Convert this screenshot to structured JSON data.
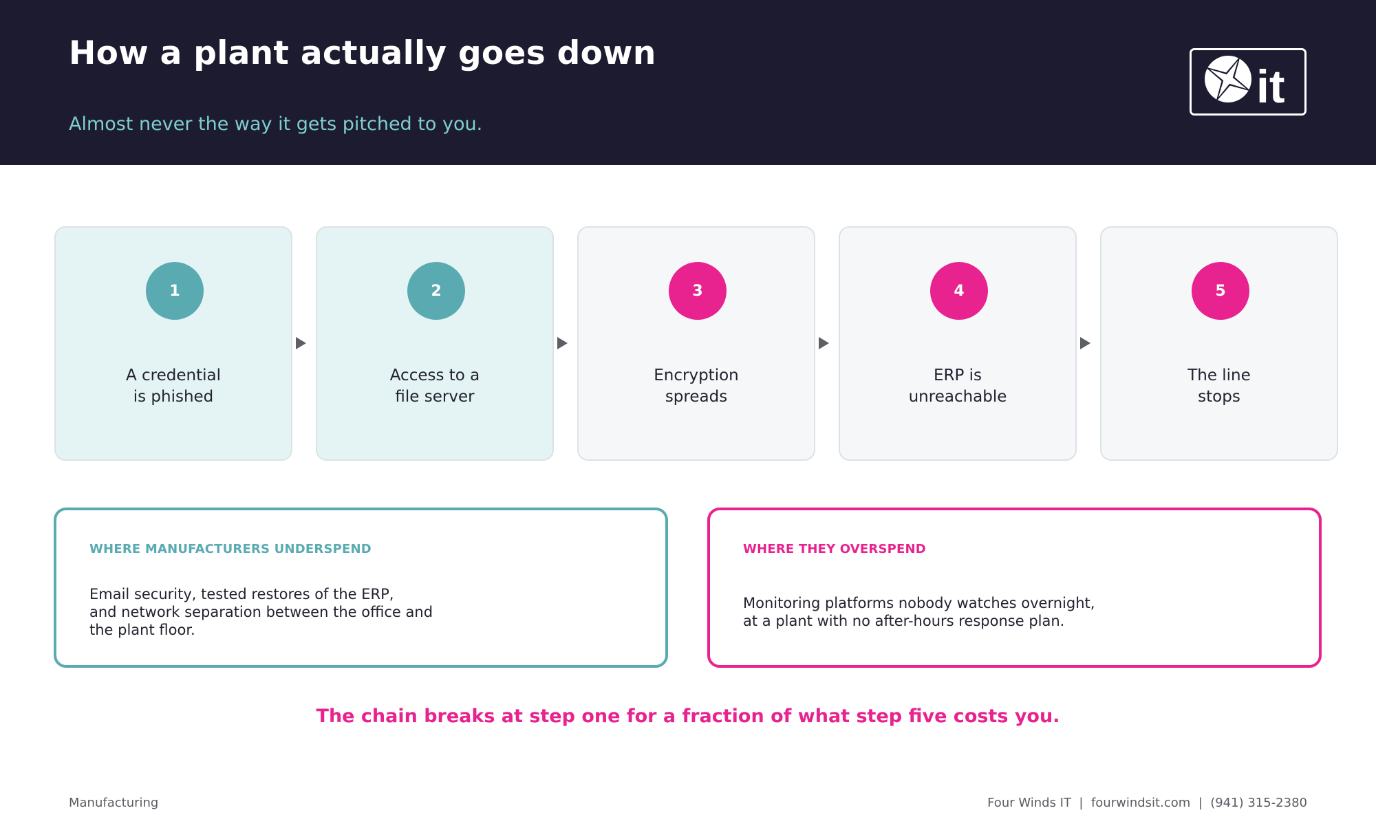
{
  "header": {
    "title": "How a plant actually goes down",
    "subtitle": "Almost never the way it gets pitched to you.",
    "logo_text": "it",
    "logo_icon": "compass-star-icon"
  },
  "steps": [
    {
      "number": "1",
      "label": "A credential\nis phished",
      "state": "done"
    },
    {
      "number": "2",
      "label": "Access to a\nfile server",
      "state": "done"
    },
    {
      "number": "3",
      "label": "Encryption\nspreads",
      "state": "todo"
    },
    {
      "number": "4",
      "label": "ERP is\nunreachable",
      "state": "todo"
    },
    {
      "number": "5",
      "label": "The line\nstops",
      "state": "todo"
    }
  ],
  "panels": {
    "underspend": {
      "title": "WHERE MANUFACTURERS UNDERSPEND",
      "body": "Email security, tested restores of the ERP,\nand network separation between the office and\nthe plant floor."
    },
    "overspend": {
      "title": "WHERE THEY OVERSPEND",
      "body": "Monitoring platforms nobody watches overnight,\nat a plant with no after-hours response plan."
    }
  },
  "tagline": "The chain breaks at step one for a fraction of what step five costs you.",
  "footer": {
    "category": "Manufacturing",
    "contact": "Four Winds IT  |  fourwindsit.com  |  (941) 315-2380"
  },
  "colors": {
    "header_bg": "#1c1b30",
    "teal": "#5aaab2",
    "pink": "#e8228f"
  }
}
